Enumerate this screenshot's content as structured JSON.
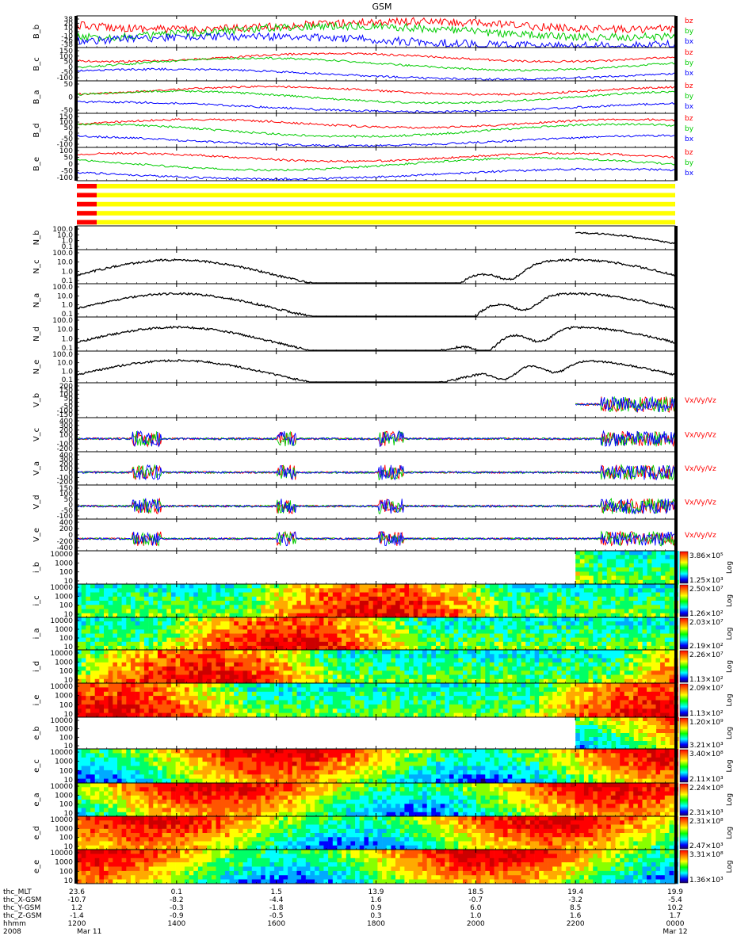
{
  "title": "GSM",
  "colors": {
    "bx": "#0000ff",
    "by": "#00cc00",
    "bz": "#ff0000",
    "vx": "#0000ff",
    "vy": "#00cc00",
    "vz": "#ff0000",
    "trace": "#000000",
    "status_bar": "#ffff00",
    "status_mark": "#ff0000"
  },
  "orbit_table": {
    "rows": [
      {
        "label": "thc_MLT",
        "values": [
          "23.6",
          "0.1",
          "1.5",
          "13.9",
          "18.5",
          "19.4",
          "19.9"
        ]
      },
      {
        "label": "thc_X-GSM",
        "values": [
          "-10.7",
          "-8.2",
          "-4.4",
          "1.6",
          "-0.7",
          "-3.2",
          "-5.4"
        ]
      },
      {
        "label": "thc_Y-GSM",
        "values": [
          "1.2",
          "-0.3",
          "-1.8",
          "0.9",
          "6.0",
          "8.5",
          "10.2"
        ]
      },
      {
        "label": "thc_Z-GSM",
        "values": [
          "-1.4",
          "-0.9",
          "-0.5",
          "0.3",
          "1.0",
          "1.6",
          "1.7"
        ]
      },
      {
        "label": "hhmm",
        "values": [
          "1200",
          "1400",
          "1600",
          "1800",
          "2000",
          "2200",
          "0000"
        ]
      },
      {
        "label": "2008",
        "values": [
          "Mar 11",
          "",
          "",
          "",
          "",
          "",
          "Mar 12"
        ]
      }
    ]
  },
  "chart_data": [
    {
      "type": "line",
      "panel": "B_b",
      "ylabel": "B_b",
      "ytick_labels": [
        "38",
        "20",
        "10",
        "0",
        "-10",
        "-26",
        "-38"
      ],
      "series": [
        {
          "name": "bz",
          "color": "#ff0000"
        },
        {
          "name": "by",
          "color": "#00cc00"
        },
        {
          "name": "bx",
          "color": "#0000ff"
        }
      ],
      "xlim": [
        1200,
        2400
      ]
    },
    {
      "type": "line",
      "panel": "B_c",
      "ylabel": "B_c",
      "ytick_labels": [
        "150",
        "100",
        "50",
        "0",
        "-50",
        "-100"
      ],
      "series": [
        {
          "name": "bz",
          "color": "#ff0000"
        },
        {
          "name": "by",
          "color": "#00cc00"
        },
        {
          "name": "bx",
          "color": "#0000ff"
        }
      ],
      "xlim": [
        1200,
        2400
      ]
    },
    {
      "type": "line",
      "panel": "B_a",
      "ylabel": "B_a",
      "ytick_labels": [
        "50",
        "0",
        "-50"
      ],
      "series": [
        {
          "name": "bz",
          "color": "#ff0000"
        },
        {
          "name": "by",
          "color": "#00cc00"
        },
        {
          "name": "bx",
          "color": "#0000ff"
        }
      ],
      "xlim": [
        1200,
        2400
      ]
    },
    {
      "type": "line",
      "panel": "B_d",
      "ylabel": "B_d",
      "ytick_labels": [
        "150",
        "100",
        "50",
        "0",
        "-50",
        "-100"
      ],
      "series": [
        {
          "name": "bz",
          "color": "#ff0000"
        },
        {
          "name": "by",
          "color": "#00cc00"
        },
        {
          "name": "bx",
          "color": "#0000ff"
        }
      ],
      "xlim": [
        1200,
        2400
      ]
    },
    {
      "type": "line",
      "panel": "B_e",
      "ylabel": "B_e",
      "ytick_labels": [
        "100",
        "50",
        "0",
        "-50",
        "-100"
      ],
      "series": [
        {
          "name": "bz",
          "color": "#ff0000"
        },
        {
          "name": "by",
          "color": "#00cc00"
        },
        {
          "name": "bx",
          "color": "#0000ff"
        }
      ],
      "xlim": [
        1200,
        2400
      ]
    },
    {
      "type": "bar",
      "panel": "status",
      "ylabel": "",
      "ytick_labels": [],
      "series": [],
      "xlim": [
        1200,
        2400
      ]
    },
    {
      "type": "line",
      "panel": "N_b",
      "ylabel": "N_b",
      "yscale": "log",
      "ytick_labels": [
        "100.0",
        "10.0",
        "1.0",
        "0.1"
      ],
      "series": [
        {
          "name": "",
          "color": "#000000"
        }
      ],
      "data_start_hhmm": 2200,
      "xlim": [
        1200,
        2400
      ]
    },
    {
      "type": "line",
      "panel": "N_c",
      "ylabel": "N_c",
      "yscale": "log",
      "ytick_labels": [
        "100.0",
        "10.0",
        "1.0",
        "0.1"
      ],
      "series": [
        {
          "name": "",
          "color": "#000000"
        }
      ],
      "xlim": [
        1200,
        2400
      ]
    },
    {
      "type": "line",
      "panel": "N_a",
      "ylabel": "N_a",
      "yscale": "log",
      "ytick_labels": [
        "100.0",
        "10.0",
        "1.0",
        "0.1"
      ],
      "series": [
        {
          "name": "",
          "color": "#000000"
        }
      ],
      "xlim": [
        1200,
        2400
      ]
    },
    {
      "type": "line",
      "panel": "N_d",
      "ylabel": "N_d",
      "yscale": "log",
      "ytick_labels": [
        "100.0",
        "10.0",
        "1.0",
        "0.1"
      ],
      "series": [
        {
          "name": "",
          "color": "#000000"
        }
      ],
      "xlim": [
        1200,
        2400
      ]
    },
    {
      "type": "line",
      "panel": "N_e",
      "ylabel": "N_e",
      "yscale": "log",
      "ytick_labels": [
        "100.0",
        "10.0",
        "1.0",
        "0.1"
      ],
      "series": [
        {
          "name": "",
          "color": "#000000"
        }
      ],
      "xlim": [
        1200,
        2400
      ]
    },
    {
      "type": "line",
      "panel": "V_b",
      "ylabel": "V_b",
      "ytick_labels": [
        "200",
        "150",
        "100",
        "50",
        "0",
        "-50",
        "-100",
        "-150"
      ],
      "series": [
        {
          "name": "Vx",
          "color": "#0000ff"
        },
        {
          "name": "Vy",
          "color": "#00cc00"
        },
        {
          "name": "Vz",
          "color": "#ff0000"
        }
      ],
      "data_start_hhmm": 2200,
      "xlim": [
        1200,
        2400
      ]
    },
    {
      "type": "line",
      "panel": "V_c",
      "ylabel": "V_c",
      "ytick_labels": [
        "400",
        "300",
        "200",
        "100",
        "0",
        "-100",
        "-200"
      ],
      "series": [
        {
          "name": "Vx",
          "color": "#0000ff"
        },
        {
          "name": "Vy",
          "color": "#00cc00"
        },
        {
          "name": "Vz",
          "color": "#ff0000"
        }
      ],
      "xlim": [
        1200,
        2400
      ]
    },
    {
      "type": "line",
      "panel": "V_a",
      "ylabel": "V_a",
      "ytick_labels": [
        "400",
        "300",
        "200",
        "100",
        "0",
        "-100",
        "-200"
      ],
      "series": [
        {
          "name": "Vx",
          "color": "#0000ff"
        },
        {
          "name": "Vy",
          "color": "#00cc00"
        },
        {
          "name": "Vz",
          "color": "#ff0000"
        }
      ],
      "xlim": [
        1200,
        2400
      ]
    },
    {
      "type": "line",
      "panel": "V_d",
      "ylabel": "V_d",
      "ytick_labels": [
        "150",
        "100",
        "50",
        "0",
        "-50",
        "-100"
      ],
      "series": [
        {
          "name": "Vx",
          "color": "#0000ff"
        },
        {
          "name": "Vy",
          "color": "#00cc00"
        },
        {
          "name": "Vz",
          "color": "#ff0000"
        }
      ],
      "xlim": [
        1200,
        2400
      ]
    },
    {
      "type": "line",
      "panel": "V_e",
      "ylabel": "V_e",
      "ytick_labels": [
        "400",
        "200",
        "0",
        "-200",
        "-400"
      ],
      "series": [
        {
          "name": "Vx",
          "color": "#0000ff"
        },
        {
          "name": "Vy",
          "color": "#00cc00"
        },
        {
          "name": "Vz",
          "color": "#ff0000"
        }
      ],
      "xlim": [
        1200,
        2400
      ]
    },
    {
      "type": "heatmap",
      "panel": "i_b",
      "ylabel": "i_b",
      "yscale": "log",
      "ytick_labels": [
        "10000",
        "1000",
        "100",
        "10"
      ],
      "colorbar": {
        "max": "3.86×10⁵",
        "min": "1.25×10³",
        "label": "Log"
      },
      "data_start_hhmm": 2200,
      "xlim": [
        1200,
        2400
      ]
    },
    {
      "type": "heatmap",
      "panel": "i_c",
      "ylabel": "i_c",
      "yscale": "log",
      "ytick_labels": [
        "10000",
        "1000",
        "100",
        "10"
      ],
      "colorbar": {
        "max": "2.50×10⁷",
        "min": "1.26×10²",
        "label": "Log"
      },
      "xlim": [
        1200,
        2400
      ]
    },
    {
      "type": "heatmap",
      "panel": "i_a",
      "ylabel": "i_a",
      "yscale": "log",
      "ytick_labels": [
        "10000",
        "1000",
        "100",
        "10"
      ],
      "colorbar": {
        "max": "2.03×10⁷",
        "min": "2.19×10²",
        "label": "Log"
      },
      "xlim": [
        1200,
        2400
      ]
    },
    {
      "type": "heatmap",
      "panel": "i_d",
      "ylabel": "i_d",
      "yscale": "log",
      "ytick_labels": [
        "10000",
        "1000",
        "100",
        "10"
      ],
      "colorbar": {
        "max": "2.26×10⁷",
        "min": "1.13×10²",
        "label": "Log"
      },
      "xlim": [
        1200,
        2400
      ]
    },
    {
      "type": "heatmap",
      "panel": "i_e",
      "ylabel": "i_e",
      "yscale": "log",
      "ytick_labels": [
        "10000",
        "1000",
        "100",
        "10"
      ],
      "colorbar": {
        "max": "2.09×10⁷",
        "min": "1.13×10²",
        "label": "Log"
      },
      "xlim": [
        1200,
        2400
      ]
    },
    {
      "type": "heatmap",
      "panel": "e_b",
      "ylabel": "e_b",
      "yscale": "log",
      "ytick_labels": [
        "10000",
        "1000",
        "100",
        "10"
      ],
      "colorbar": {
        "max": "1.20×10⁹",
        "min": "3.21×10³",
        "label": "Log"
      },
      "data_start_hhmm": 2200,
      "xlim": [
        1200,
        2400
      ]
    },
    {
      "type": "heatmap",
      "panel": "e_c",
      "ylabel": "e_c",
      "yscale": "log",
      "ytick_labels": [
        "10000",
        "1000",
        "100",
        "10"
      ],
      "colorbar": {
        "max": "3.40×10⁸",
        "min": "2.11×10³",
        "label": "Log"
      },
      "xlim": [
        1200,
        2400
      ]
    },
    {
      "type": "heatmap",
      "panel": "e_a",
      "ylabel": "e_a",
      "yscale": "log",
      "ytick_labels": [
        "10000",
        "1000",
        "100",
        "10"
      ],
      "colorbar": {
        "max": "2.24×10⁸",
        "min": "2.31×10³",
        "label": "Log"
      },
      "xlim": [
        1200,
        2400
      ]
    },
    {
      "type": "heatmap",
      "panel": "e_d",
      "ylabel": "e_d",
      "yscale": "log",
      "ytick_labels": [
        "10000",
        "1000",
        "100",
        "10"
      ],
      "colorbar": {
        "max": "2.31×10⁸",
        "min": "2.47×10³",
        "label": "Log"
      },
      "xlim": [
        1200,
        2400
      ]
    },
    {
      "type": "heatmap",
      "panel": "e_e",
      "ylabel": "e_e",
      "yscale": "log",
      "ytick_labels": [
        "10000",
        "1000",
        "100",
        "10"
      ],
      "colorbar": {
        "max": "3.31×10⁸",
        "min": "1.36×10³",
        "label": "Log"
      },
      "xlim": [
        1200,
        2400
      ]
    }
  ]
}
